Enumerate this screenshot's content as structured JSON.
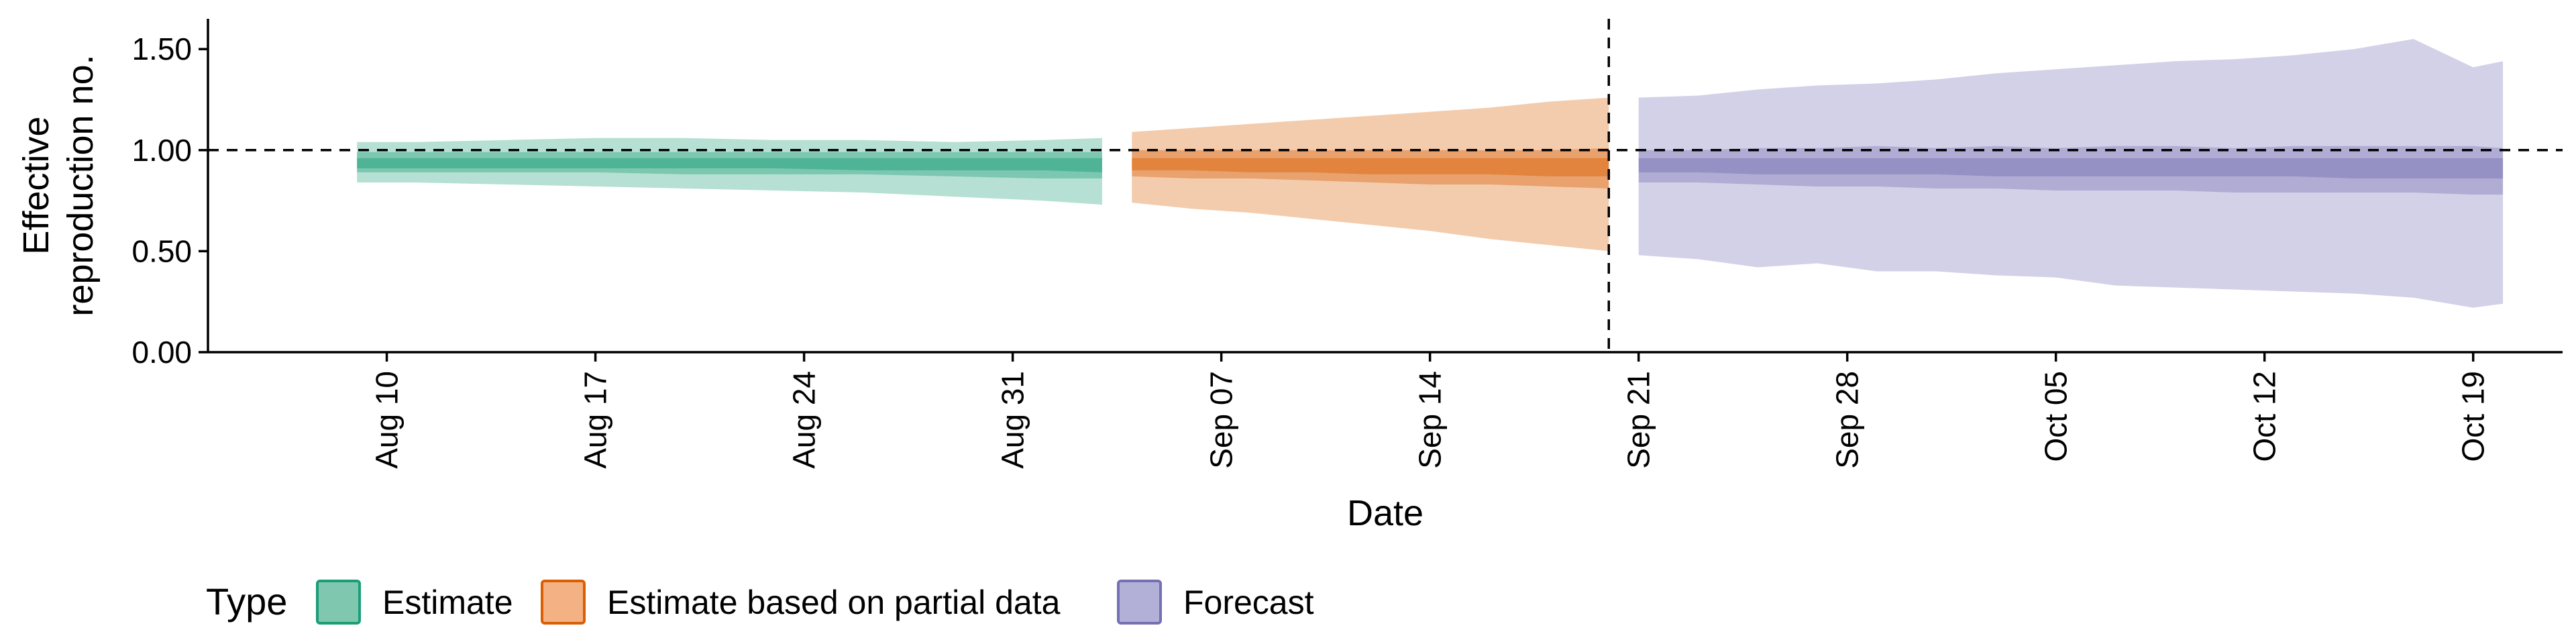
{
  "chart_data": {
    "type": "area",
    "xlabel": "Date",
    "ylabel_lines": [
      "Effective",
      "reproduction no."
    ],
    "ylim": [
      0,
      1.65
    ],
    "x_range": [
      "2020-08-04",
      "2020-10-22"
    ],
    "y_ticks": [
      0,
      0.5,
      1.0,
      1.5
    ],
    "y_tick_labels": [
      "0.00",
      "0.50",
      "1.00",
      "1.50"
    ],
    "x_ticks": [
      {
        "date": "2020-08-10",
        "label": "Aug 10"
      },
      {
        "date": "2020-08-17",
        "label": "Aug 17"
      },
      {
        "date": "2020-08-24",
        "label": "Aug 24"
      },
      {
        "date": "2020-08-31",
        "label": "Aug 31"
      },
      {
        "date": "2020-09-07",
        "label": "Sep 07"
      },
      {
        "date": "2020-09-14",
        "label": "Sep 14"
      },
      {
        "date": "2020-09-21",
        "label": "Sep 21"
      },
      {
        "date": "2020-09-28",
        "label": "Sep 28"
      },
      {
        "date": "2020-10-05",
        "label": "Oct 05"
      },
      {
        "date": "2020-10-12",
        "label": "Oct 12"
      },
      {
        "date": "2020-10-19",
        "label": "Oct 19"
      }
    ],
    "reference_hline": 1.0,
    "reference_vline": "2020-09-20",
    "grid": false,
    "legend_position": "bottom-left",
    "legend_title": "Type",
    "series": [
      {
        "name": "Estimate",
        "color": "#1B9E77",
        "fill": "#7FC7AF",
        "dates": [
          "2020-08-09",
          "2020-08-11",
          "2020-08-14",
          "2020-08-17",
          "2020-08-20",
          "2020-08-23",
          "2020-08-26",
          "2020-08-29",
          "2020-09-01",
          "2020-09-03"
        ],
        "bands": [
          {
            "level": "outer",
            "lower": [
              0.84,
              0.84,
              0.83,
              0.82,
              0.81,
              0.8,
              0.79,
              0.77,
              0.75,
              0.73
            ],
            "upper": [
              1.04,
              1.04,
              1.05,
              1.06,
              1.06,
              1.05,
              1.05,
              1.04,
              1.05,
              1.06
            ]
          },
          {
            "level": "middle",
            "lower": [
              0.89,
              0.89,
              0.89,
              0.89,
              0.88,
              0.88,
              0.88,
              0.87,
              0.86,
              0.86
            ],
            "upper": [
              0.99,
              0.99,
              0.99,
              0.99,
              0.99,
              0.99,
              0.99,
              0.99,
              0.99,
              0.99
            ]
          },
          {
            "level": "inner",
            "lower": [
              0.91,
              0.91,
              0.91,
              0.91,
              0.91,
              0.91,
              0.9,
              0.9,
              0.9,
              0.89
            ],
            "upper": [
              0.96,
              0.96,
              0.96,
              0.96,
              0.96,
              0.96,
              0.96,
              0.96,
              0.96,
              0.96
            ]
          }
        ]
      },
      {
        "name": "Estimate based on partial data",
        "color": "#D95F02",
        "fill": "#F4B183",
        "dates": [
          "2020-09-04",
          "2020-09-06",
          "2020-09-08",
          "2020-09-10",
          "2020-09-12",
          "2020-09-14",
          "2020-09-16",
          "2020-09-18",
          "2020-09-20"
        ],
        "bands": [
          {
            "level": "outer",
            "lower": [
              0.74,
              0.71,
              0.69,
              0.66,
              0.63,
              0.6,
              0.56,
              0.53,
              0.5
            ],
            "upper": [
              1.09,
              1.11,
              1.13,
              1.15,
              1.17,
              1.19,
              1.21,
              1.24,
              1.26
            ]
          },
          {
            "level": "middle",
            "lower": [
              0.87,
              0.86,
              0.86,
              0.85,
              0.84,
              0.83,
              0.83,
              0.82,
              0.81
            ],
            "upper": [
              1.0,
              1.0,
              1.0,
              1.0,
              1.0,
              1.0,
              1.0,
              1.0,
              1.01
            ]
          },
          {
            "level": "inner",
            "lower": [
              0.9,
              0.9,
              0.89,
              0.89,
              0.88,
              0.88,
              0.88,
              0.87,
              0.87
            ],
            "upper": [
              0.96,
              0.96,
              0.96,
              0.96,
              0.96,
              0.96,
              0.96,
              0.96,
              0.96
            ]
          }
        ]
      },
      {
        "name": "Forecast",
        "color": "#7570B3",
        "fill": "#B3B0D8",
        "dates": [
          "2020-09-21",
          "2020-09-23",
          "2020-09-25",
          "2020-09-27",
          "2020-09-29",
          "2020-10-01",
          "2020-10-03",
          "2020-10-05",
          "2020-10-07",
          "2020-10-09",
          "2020-10-11",
          "2020-10-13",
          "2020-10-15",
          "2020-10-17",
          "2020-10-19",
          "2020-10-20"
        ],
        "bands": [
          {
            "level": "outer",
            "lower": [
              0.48,
              0.46,
              0.42,
              0.44,
              0.4,
              0.4,
              0.38,
              0.37,
              0.33,
              0.32,
              0.31,
              0.3,
              0.29,
              0.27,
              0.22,
              0.24
            ],
            "upper": [
              1.26,
              1.27,
              1.3,
              1.32,
              1.33,
              1.35,
              1.38,
              1.4,
              1.42,
              1.44,
              1.45,
              1.47,
              1.5,
              1.55,
              1.41,
              1.44
            ]
          },
          {
            "level": "middle",
            "lower": [
              0.84,
              0.84,
              0.83,
              0.82,
              0.82,
              0.81,
              0.81,
              0.8,
              0.8,
              0.8,
              0.79,
              0.79,
              0.79,
              0.79,
              0.78,
              0.78
            ],
            "upper": [
              1.0,
              1.0,
              1.01,
              1.01,
              1.02,
              1.01,
              1.02,
              1.01,
              1.02,
              1.02,
              1.01,
              1.02,
              1.02,
              1.02,
              1.02,
              1.01
            ]
          },
          {
            "level": "inner",
            "lower": [
              0.89,
              0.89,
              0.88,
              0.88,
              0.88,
              0.88,
              0.87,
              0.87,
              0.87,
              0.87,
              0.87,
              0.87,
              0.86,
              0.86,
              0.86,
              0.86
            ],
            "upper": [
              0.96,
              0.96,
              0.96,
              0.96,
              0.96,
              0.96,
              0.96,
              0.96,
              0.96,
              0.96,
              0.96,
              0.96,
              0.96,
              0.96,
              0.96,
              0.96
            ]
          }
        ]
      }
    ]
  }
}
